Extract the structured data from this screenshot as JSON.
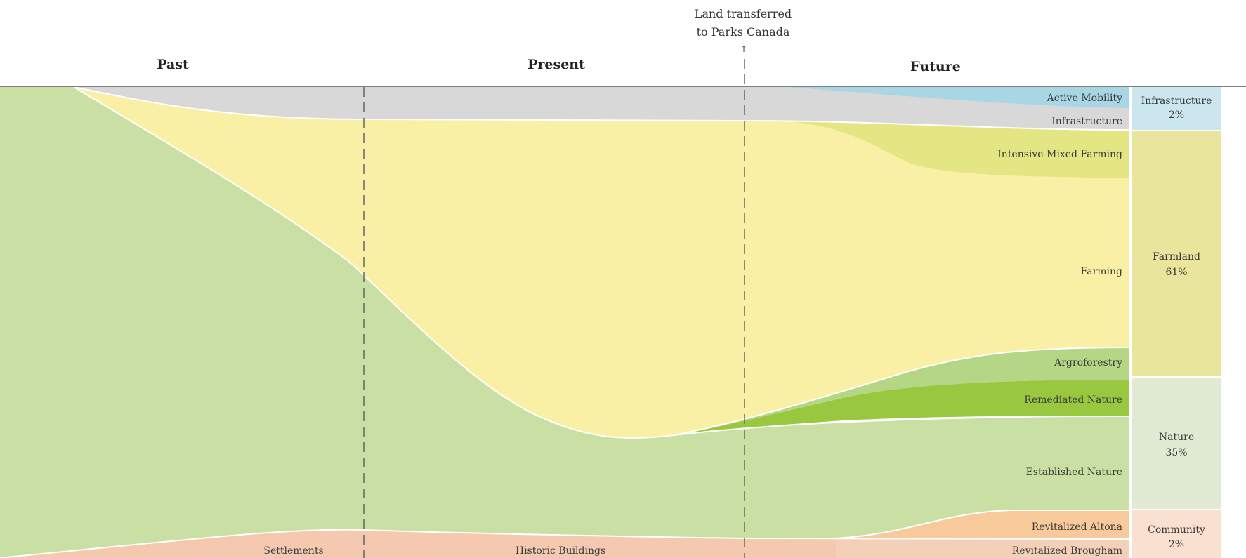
{
  "headers": {
    "past": "Past",
    "present": "Present",
    "future": "Future"
  },
  "transfer_note": {
    "line1": "Land transferred",
    "line2": "to Parks Canada",
    "arrow": "↑"
  },
  "flows": {
    "infrastructure": {
      "label": "Infrastructure",
      "color": "#d8d8d8"
    },
    "active_mobility": {
      "label": "Active Mobility",
      "color": "#a9d6e4"
    },
    "intensive_mixed_farming": {
      "label": "Intensive Mixed Farming",
      "color": "#e3e682"
    },
    "farming": {
      "label": "Farming",
      "color": "#f9f0a6"
    },
    "agroforestry": {
      "label": "Argroforestry",
      "color": "#b5d685"
    },
    "remediated_nature": {
      "label": "Remediated Nature",
      "color": "#99c840"
    },
    "established_nature": {
      "label": "Established Nature",
      "color": "#c9dfa3"
    },
    "settlements": {
      "label": "Settlements",
      "color": "#f4c9b0"
    },
    "historic_buildings": {
      "label": "Historic Buildings",
      "color": "#f4c9b0"
    },
    "revitalized_altona": {
      "label": "Revitalized Altona",
      "color": "#f8c99a"
    },
    "revitalized_brougham": {
      "label": "Revitalized Brougham",
      "color": "#f5d0b8"
    }
  },
  "categories": {
    "infrastructure": {
      "name": "Infrastructure",
      "percent": "2%",
      "color": "#cbe6ee"
    },
    "farmland": {
      "name": "Farmland",
      "percent": "61%",
      "color": "#eae59d"
    },
    "nature": {
      "name": "Nature",
      "percent": "35%",
      "color": "#e1ebd4"
    },
    "community": {
      "name": "Community",
      "percent": "2%",
      "color": "#fae0d0"
    }
  }
}
